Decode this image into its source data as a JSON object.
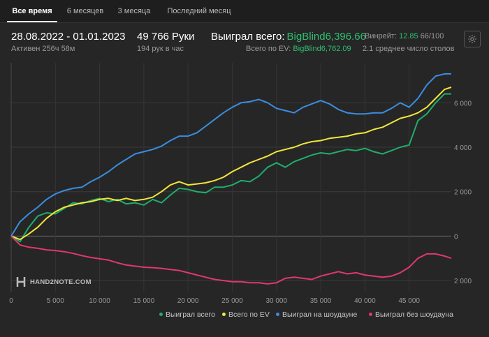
{
  "tabs": [
    {
      "label": "Все время",
      "active": true
    },
    {
      "label": "6 месяцев",
      "active": false
    },
    {
      "label": "3 месяца",
      "active": false
    },
    {
      "label": "Последний месяц",
      "active": false
    }
  ],
  "summary": {
    "date_range": "28.08.2022 - 01.01.2023",
    "active_time": "Активен 256ч 58м",
    "hands": "49 766 Руки",
    "hands_per_hour": "194 рук в час",
    "won_total_label": "Выиграл всего:",
    "won_total_value": "BigBlind6,396.66",
    "ev_label": "Всего по EV:",
    "ev_value": "BigBlind6,762.09",
    "winrate_label": "Винрейт:",
    "winrate_value": "12.85",
    "winrate_unit": "66/100",
    "tables_text": "2.1 среднее число столов"
  },
  "logo": {
    "text": "HAND2NOTE.COM"
  },
  "icons": {
    "settings": "gear-icon",
    "logo": "hand2note-logo-icon"
  },
  "colors": {
    "won_total": "#1fae6b",
    "ev": "#f2e63a",
    "showdown": "#3b8de0",
    "non_showdown": "#e0386c"
  },
  "chart_data": {
    "type": "line",
    "xlim": [
      0,
      49766
    ],
    "ylim": [
      -2500,
      7800
    ],
    "x_ticks": [
      0,
      5000,
      10000,
      15000,
      20000,
      25000,
      30000,
      35000,
      40000,
      45000
    ],
    "x_tick_labels": [
      "0",
      "5 000",
      "10 000",
      "15 000",
      "20 000",
      "25 000",
      "30 000",
      "35 000",
      "40 000",
      "45 000"
    ],
    "y_ticks": [
      -2000,
      0,
      2000,
      4000,
      6000
    ],
    "y_tick_labels": [
      "2 000",
      "0",
      "2 000",
      "4 000",
      "6 000"
    ],
    "grid": true,
    "legend_position": "bottom-right",
    "x": [
      0,
      1000,
      2000,
      3000,
      4000,
      5000,
      6000,
      7000,
      8000,
      9000,
      10000,
      11000,
      12000,
      13000,
      14000,
      15000,
      16000,
      17000,
      18000,
      19000,
      20000,
      21000,
      22000,
      23000,
      24000,
      25000,
      26000,
      27000,
      28000,
      29000,
      30000,
      31000,
      32000,
      33000,
      34000,
      35000,
      36000,
      37000,
      38000,
      39000,
      40000,
      41000,
      42000,
      43000,
      44000,
      45000,
      46000,
      47000,
      48000,
      49000,
      49766
    ],
    "series": [
      {
        "name": "Выиграл всего",
        "color": "#1fae6b",
        "values": [
          0,
          -250,
          400,
          900,
          1050,
          1000,
          1250,
          1500,
          1450,
          1600,
          1700,
          1550,
          1650,
          1450,
          1500,
          1400,
          1650,
          1500,
          1850,
          2150,
          2100,
          2000,
          1950,
          2200,
          2200,
          2300,
          2500,
          2450,
          2700,
          3100,
          3300,
          3100,
          3350,
          3500,
          3650,
          3750,
          3700,
          3800,
          3900,
          3850,
          3950,
          3800,
          3700,
          3850,
          4000,
          4100,
          5200,
          5500,
          6000,
          6400,
          6400
        ]
      },
      {
        "name": "Всего по EV",
        "color": "#f2e63a",
        "values": [
          0,
          -150,
          100,
          400,
          800,
          1100,
          1300,
          1400,
          1500,
          1550,
          1650,
          1700,
          1600,
          1700,
          1600,
          1650,
          1750,
          2000,
          2300,
          2450,
          2300,
          2350,
          2400,
          2500,
          2650,
          2900,
          3100,
          3300,
          3450,
          3600,
          3800,
          3900,
          4000,
          4150,
          4250,
          4300,
          4400,
          4450,
          4500,
          4600,
          4650,
          4800,
          4900,
          5100,
          5300,
          5400,
          5550,
          5800,
          6200,
          6600,
          6700
        ]
      },
      {
        "name": "Выиграл на шоудауне",
        "color": "#3b8de0",
        "values": [
          0,
          650,
          1000,
          1300,
          1650,
          1900,
          2050,
          2150,
          2200,
          2450,
          2650,
          2900,
          3200,
          3450,
          3700,
          3800,
          3900,
          4050,
          4300,
          4500,
          4500,
          4650,
          4950,
          5250,
          5550,
          5800,
          6000,
          6050,
          6150,
          6000,
          5750,
          5650,
          5550,
          5800,
          5950,
          6100,
          5950,
          5700,
          5550,
          5500,
          5500,
          5550,
          5550,
          5750,
          6000,
          5800,
          6200,
          6800,
          7200,
          7300,
          7300
        ]
      },
      {
        "name": "Выиграл без шоудауна",
        "color": "#e0386c",
        "values": [
          0,
          -400,
          -500,
          -550,
          -620,
          -650,
          -700,
          -780,
          -880,
          -960,
          -1020,
          -1080,
          -1200,
          -1300,
          -1350,
          -1400,
          -1420,
          -1450,
          -1500,
          -1550,
          -1650,
          -1750,
          -1850,
          -1950,
          -2000,
          -2050,
          -2050,
          -2100,
          -2100,
          -2150,
          -2100,
          -1900,
          -1850,
          -1900,
          -1950,
          -1800,
          -1700,
          -1600,
          -1700,
          -1650,
          -1750,
          -1800,
          -1850,
          -1800,
          -1650,
          -1400,
          -1000,
          -800,
          -800,
          -900,
          -1000
        ]
      }
    ]
  }
}
